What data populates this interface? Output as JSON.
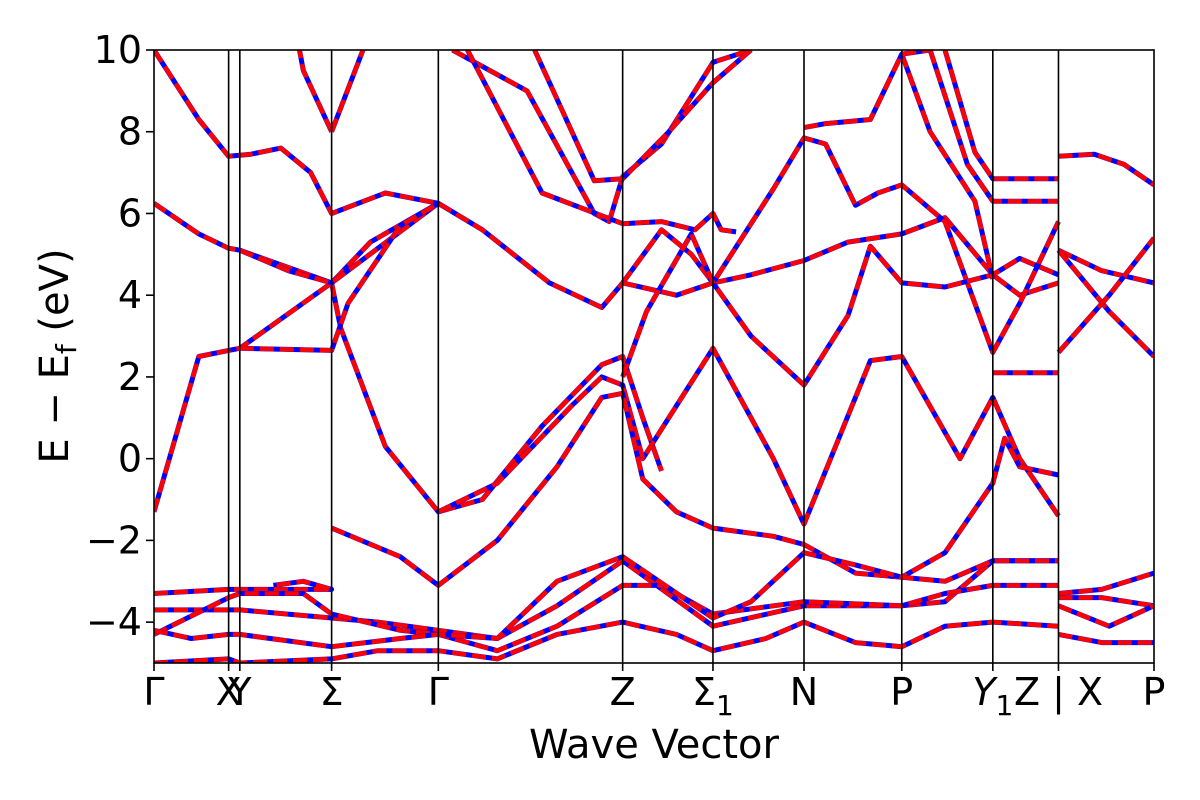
{
  "chart_data": {
    "type": "line",
    "xlabel": "Wave Vector",
    "ylabel": "E − E_f (eV)",
    "ylabel_parts": {
      "main": "E − E",
      "sub": "f",
      "unit": " (eV)"
    },
    "ylim": [
      -5,
      10
    ],
    "yticks": [
      -4,
      -2,
      0,
      2,
      4,
      6,
      8,
      10
    ],
    "ytick_labels": [
      "−4",
      "−2",
      "0",
      "2",
      "4",
      "6",
      "8",
      "10"
    ],
    "xlim": [
      0,
      13.4
    ],
    "kpoints": [
      {
        "label": "Γ",
        "x": 0.0
      },
      {
        "label": "X",
        "x": 1.0
      },
      {
        "label": "Y",
        "x": 1.15
      },
      {
        "label": "Σ",
        "x": 2.38
      },
      {
        "label": "Γ",
        "x": 3.81
      },
      {
        "label": "Z",
        "x": 6.28
      },
      {
        "label": "Σ",
        "sub": "1",
        "x": 7.49
      },
      {
        "label": "N",
        "x": 8.71
      },
      {
        "label": "P",
        "x": 10.02
      },
      {
        "label": "Y",
        "sub": "1",
        "italic": true,
        "x": 11.24
      },
      {
        "label": "Z | X",
        "x": 12.12
      },
      {
        "label": "P",
        "x": 13.4
      }
    ],
    "grid": false,
    "series": [
      {
        "color": "#0000ff",
        "style": "dashed",
        "bands": [
          [
            [
              0,
              -1.3
            ],
            [
              0.6,
              2.5
            ],
            [
              1.0,
              2.65
            ],
            [
              1.15,
              2.7
            ],
            [
              2.38,
              4.3
            ],
            [
              2.9,
              5.3
            ],
            [
              3.81,
              6.25
            ]
          ],
          [
            [
              0,
              6.25
            ],
            [
              0.6,
              5.5
            ],
            [
              1.0,
              5.15
            ],
            [
              1.15,
              5.1
            ],
            [
              2.38,
              4.3
            ]
          ],
          [
            [
              2.38,
              4.3
            ],
            [
              2.5,
              3.2
            ],
            [
              3.1,
              0.3
            ],
            [
              3.81,
              -1.3
            ],
            [
              4.4,
              -1.0
            ],
            [
              5.2,
              0.8
            ],
            [
              6.0,
              2.3
            ],
            [
              6.28,
              2.5
            ],
            [
              6.55,
              1.0
            ],
            [
              6.8,
              -0.3
            ]
          ],
          [
            [
              0,
              10.0
            ],
            [
              0.6,
              8.3
            ],
            [
              1.0,
              7.4
            ],
            [
              1.3,
              7.45
            ],
            [
              1.7,
              7.6
            ],
            [
              2.1,
              7.0
            ],
            [
              2.38,
              6.0
            ],
            [
              3.1,
              6.5
            ],
            [
              3.81,
              6.25
            ],
            [
              4.4,
              5.6
            ],
            [
              5.3,
              4.3
            ],
            [
              6.0,
              3.7
            ],
            [
              6.28,
              4.3
            ]
          ],
          [
            [
              1.15,
              5.1
            ],
            [
              1.8,
              4.6
            ],
            [
              2.38,
              4.3
            ],
            [
              3.81,
              6.25
            ]
          ],
          [
            [
              1.15,
              2.7
            ],
            [
              2.38,
              2.65
            ],
            [
              2.6,
              3.8
            ],
            [
              3.3,
              5.7
            ],
            [
              3.81,
              6.25
            ]
          ],
          [
            [
              2.38,
              8.0
            ],
            [
              2.0,
              9.5
            ],
            [
              1.95,
              10.0
            ]
          ],
          [
            [
              2.38,
              8.0
            ],
            [
              2.8,
              10.0
            ]
          ],
          [
            [
              4.0,
              10.0
            ],
            [
              5.0,
              9.0
            ],
            [
              5.9,
              6.0
            ],
            [
              6.1,
              5.8
            ],
            [
              6.28,
              6.9
            ],
            [
              6.8,
              7.7
            ],
            [
              7.49,
              9.7
            ],
            [
              8.0,
              10.0
            ]
          ],
          [
            [
              4.2,
              10.0
            ],
            [
              5.2,
              6.5
            ],
            [
              6.28,
              5.75
            ],
            [
              6.8,
              5.8
            ],
            [
              7.25,
              5.6
            ],
            [
              7.49,
              6.0
            ],
            [
              7.6,
              5.6
            ],
            [
              7.8,
              5.55
            ]
          ],
          [
            [
              5.1,
              10.0
            ],
            [
              5.9,
              6.8
            ],
            [
              6.28,
              6.85
            ],
            [
              6.9,
              8.0
            ],
            [
              7.49,
              9.2
            ],
            [
              8.0,
              10.0
            ]
          ],
          [
            [
              6.28,
              4.3
            ],
            [
              6.8,
              5.6
            ],
            [
              7.2,
              5.0
            ],
            [
              7.49,
              4.3
            ],
            [
              8.0,
              4.5
            ],
            [
              8.71,
              4.85
            ],
            [
              9.3,
              5.3
            ],
            [
              10.02,
              5.5
            ],
            [
              10.6,
              5.9
            ],
            [
              11.24,
              4.5
            ],
            [
              11.6,
              4.0
            ],
            [
              12.12,
              4.3
            ]
          ],
          [
            [
              6.28,
              4.3
            ],
            [
              7.0,
              4.0
            ],
            [
              7.49,
              4.3
            ],
            [
              8.3,
              6.6
            ],
            [
              8.71,
              7.85
            ],
            [
              9.0,
              7.7
            ],
            [
              9.4,
              6.2
            ],
            [
              9.7,
              6.5
            ],
            [
              10.02,
              6.7
            ],
            [
              10.6,
              5.8
            ],
            [
              11.24,
              2.6
            ],
            [
              11.6,
              3.8
            ],
            [
              12.12,
              5.8
            ]
          ],
          [
            [
              6.28,
              2.0
            ],
            [
              6.6,
              3.6
            ],
            [
              7.2,
              5.5
            ],
            [
              7.49,
              4.3
            ],
            [
              8.0,
              3.0
            ],
            [
              8.71,
              1.8
            ],
            [
              9.3,
              3.5
            ],
            [
              9.6,
              5.2
            ],
            [
              10.02,
              4.3
            ],
            [
              10.6,
              4.2
            ],
            [
              11.24,
              4.5
            ],
            [
              11.6,
              4.9
            ],
            [
              12.12,
              4.5
            ]
          ],
          [
            [
              3.81,
              -1.3
            ],
            [
              4.6,
              -0.6
            ],
            [
              5.6,
              1.3
            ],
            [
              6.0,
              2.0
            ],
            [
              6.28,
              1.8
            ],
            [
              6.55,
              0.0
            ],
            [
              7.49,
              2.7
            ],
            [
              8.3,
              0.0
            ],
            [
              8.71,
              -1.6
            ],
            [
              9.6,
              2.4
            ],
            [
              10.02,
              2.5
            ],
            [
              10.8,
              0.0
            ],
            [
              11.24,
              1.5
            ],
            [
              11.6,
              0.0
            ],
            [
              12.12,
              -1.4
            ]
          ],
          [
            [
              2.38,
              -1.7
            ],
            [
              3.3,
              -2.4
            ],
            [
              3.81,
              -3.1
            ],
            [
              4.6,
              -2.0
            ],
            [
              5.4,
              -0.2
            ],
            [
              6.0,
              1.5
            ],
            [
              6.28,
              1.6
            ],
            [
              6.55,
              -0.5
            ],
            [
              7.0,
              -1.3
            ],
            [
              7.49,
              -1.7
            ],
            [
              8.3,
              -1.9
            ],
            [
              8.71,
              -2.1
            ],
            [
              9.4,
              -2.8
            ],
            [
              10.02,
              -2.9
            ],
            [
              10.6,
              -2.3
            ],
            [
              11.24,
              -0.6
            ],
            [
              11.4,
              0.5
            ],
            [
              11.6,
              -0.2
            ],
            [
              12.12,
              -0.4
            ]
          ],
          [
            [
              0,
              -3.3
            ],
            [
              1.0,
              -3.2
            ],
            [
              1.15,
              -3.2
            ],
            [
              2.38,
              -3.2
            ],
            [
              2.0,
              -3.0
            ],
            [
              1.6,
              -3.1
            ]
          ],
          [
            [
              0,
              -3.7
            ],
            [
              1.0,
              -3.7
            ],
            [
              1.15,
              -3.7
            ],
            [
              2.38,
              -3.9
            ],
            [
              3.0,
              -4.0
            ],
            [
              3.81,
              -4.2
            ],
            [
              4.6,
              -4.4
            ],
            [
              5.4,
              -3.6
            ],
            [
              6.28,
              -2.5
            ],
            [
              7.49,
              -4.1
            ],
            [
              8.71,
              -3.6
            ],
            [
              10.02,
              -3.6
            ],
            [
              10.6,
              -3.5
            ],
            [
              11.24,
              -2.5
            ],
            [
              12.12,
              -2.5
            ]
          ],
          [
            [
              0,
              -4.3
            ],
            [
              1.0,
              -3.4
            ],
            [
              1.15,
              -3.3
            ],
            [
              2.0,
              -3.3
            ],
            [
              2.38,
              -3.8
            ],
            [
              3.3,
              -4.2
            ],
            [
              3.81,
              -4.3
            ],
            [
              4.6,
              -4.7
            ],
            [
              5.4,
              -4.1
            ],
            [
              6.28,
              -3.1
            ],
            [
              6.8,
              -3.1
            ],
            [
              7.49,
              -3.8
            ],
            [
              8.71,
              -3.5
            ],
            [
              10.02,
              -3.6
            ],
            [
              10.6,
              -3.3
            ],
            [
              11.24,
              -3.1
            ],
            [
              12.12,
              -3.1
            ]
          ],
          [
            [
              0,
              -4.2
            ],
            [
              0.5,
              -4.4
            ],
            [
              1.0,
              -4.3
            ],
            [
              1.15,
              -4.3
            ],
            [
              2.38,
              -4.6
            ],
            [
              3.3,
              -4.4
            ],
            [
              3.81,
              -4.3
            ],
            [
              4.6,
              -4.4
            ],
            [
              5.4,
              -3.0
            ],
            [
              6.28,
              -2.4
            ],
            [
              7.49,
              -3.9
            ],
            [
              8.0,
              -3.5
            ],
            [
              8.71,
              -2.3
            ],
            [
              9.4,
              -2.6
            ],
            [
              10.02,
              -2.9
            ],
            [
              10.6,
              -3.0
            ],
            [
              11.24,
              -2.5
            ],
            [
              12.12,
              -2.5
            ]
          ],
          [
            [
              0,
              -5.0
            ],
            [
              1.0,
              -4.9
            ],
            [
              1.15,
              -5.0
            ],
            [
              2.38,
              -4.9
            ],
            [
              3.0,
              -4.7
            ],
            [
              3.81,
              -4.7
            ],
            [
              4.6,
              -4.9
            ],
            [
              5.4,
              -4.3
            ],
            [
              6.28,
              -4.0
            ],
            [
              7.0,
              -4.3
            ],
            [
              7.49,
              -4.7
            ],
            [
              8.2,
              -4.4
            ],
            [
              8.71,
              -4.0
            ],
            [
              9.4,
              -4.5
            ],
            [
              10.02,
              -4.6
            ],
            [
              10.6,
              -4.1
            ],
            [
              11.24,
              -4.0
            ],
            [
              12.12,
              -4.1
            ]
          ],
          [
            [
              12.12,
              7.4
            ],
            [
              12.6,
              7.45
            ],
            [
              13.0,
              7.2
            ],
            [
              13.4,
              6.7
            ]
          ],
          [
            [
              12.12,
              5.1
            ],
            [
              12.7,
              4.6
            ],
            [
              13.4,
              4.3
            ]
          ],
          [
            [
              12.12,
              5.1
            ],
            [
              12.8,
              3.6
            ],
            [
              13.4,
              2.5
            ]
          ],
          [
            [
              12.12,
              2.6
            ],
            [
              12.8,
              4.0
            ],
            [
              13.4,
              5.4
            ]
          ],
          [
            [
              12.12,
              -3.3
            ],
            [
              12.7,
              -3.2
            ],
            [
              13.4,
              -2.8
            ]
          ],
          [
            [
              12.12,
              -3.4
            ],
            [
              12.7,
              -3.4
            ],
            [
              13.4,
              -3.6
            ]
          ],
          [
            [
              12.12,
              -3.6
            ],
            [
              12.8,
              -4.1
            ],
            [
              13.4,
              -3.6
            ]
          ],
          [
            [
              12.12,
              -4.3
            ],
            [
              12.7,
              -4.5
            ],
            [
              13.4,
              -4.5
            ]
          ],
          [
            [
              10.6,
              10.0
            ],
            [
              11.0,
              7.5
            ],
            [
              11.24,
              6.85
            ],
            [
              12.12,
              6.85
            ]
          ],
          [
            [
              10.4,
              10.0
            ],
            [
              10.9,
              7.2
            ],
            [
              11.24,
              6.3
            ],
            [
              12.12,
              6.3
            ]
          ],
          [
            [
              11.24,
              2.1
            ],
            [
              12.12,
              2.1
            ]
          ],
          [
            [
              10.02,
              9.9
            ],
            [
              10.4,
              8.0
            ],
            [
              11.0,
              6.3
            ],
            [
              11.24,
              4.4
            ]
          ],
          [
            [
              8.71,
              8.1
            ],
            [
              9.0,
              8.2
            ],
            [
              9.6,
              8.3
            ],
            [
              10.02,
              9.9
            ],
            [
              10.4,
              10.0
            ]
          ]
        ]
      },
      {
        "color": "#ff0000",
        "style": "solid"
      }
    ]
  }
}
